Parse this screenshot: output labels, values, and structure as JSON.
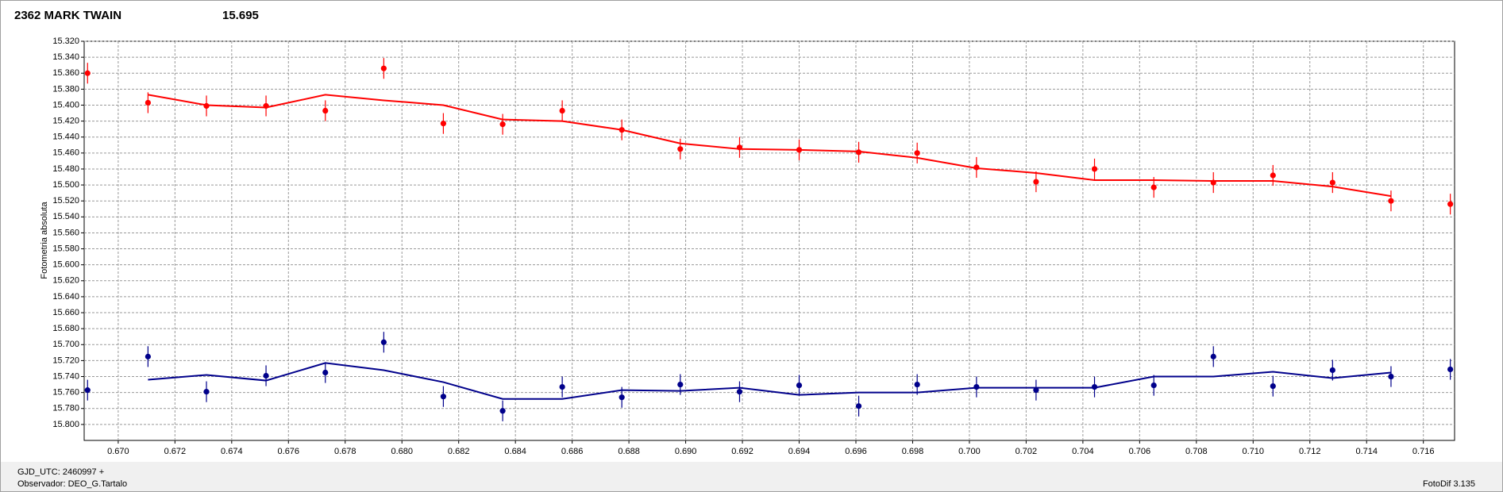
{
  "chart_data": {
    "type": "scatter",
    "title": "2362 MARK TWAIN",
    "title_color": "#ff0000",
    "subtitle": "15.695",
    "subtitle_color": "#00008b",
    "y_label": "Fotometria absoluta",
    "inverted_y": true,
    "grid": true,
    "x": [
      0.66892,
      0.67105,
      0.67311,
      0.67521,
      0.6773,
      0.67936,
      0.68146,
      0.68355,
      0.68565,
      0.68775,
      0.68981,
      0.6919,
      0.694,
      0.6961,
      0.69816,
      0.70025,
      0.70235,
      0.70441,
      0.7065,
      0.7086,
      0.7107,
      0.7128,
      0.71486,
      0.71695
    ],
    "series": [
      {
        "color": "#ff0000",
        "values": [
          15.36,
          15.397,
          15.401,
          15.401,
          15.407,
          15.354,
          15.423,
          15.424,
          15.407,
          15.431,
          15.455,
          15.453,
          15.456,
          15.459,
          15.46,
          15.478,
          15.496,
          15.48,
          15.503,
          15.497,
          15.488,
          15.497,
          15.52,
          15.524
        ],
        "errors": [
          0.013,
          0.013,
          0.013,
          0.013,
          0.013,
          0.013,
          0.013,
          0.013,
          0.013,
          0.013,
          0.013,
          0.013,
          0.013,
          0.013,
          0.013,
          0.013,
          0.013,
          0.013,
          0.013,
          0.013,
          0.013,
          0.013,
          0.013,
          0.013
        ],
        "fit": [
          null,
          15.387,
          15.4,
          15.403,
          15.387,
          15.394,
          15.4,
          15.418,
          15.42,
          15.431,
          15.448,
          15.455,
          15.456,
          15.458,
          15.466,
          15.479,
          15.485,
          15.494,
          15.494,
          15.495,
          15.495,
          15.502,
          15.514,
          null
        ]
      },
      {
        "color": "#00008b",
        "values": [
          15.757,
          15.715,
          15.759,
          15.739,
          15.735,
          15.697,
          15.765,
          15.783,
          15.753,
          15.766,
          15.75,
          15.759,
          15.751,
          15.777,
          15.75,
          15.753,
          15.757,
          15.753,
          15.751,
          15.715,
          15.752,
          15.732,
          15.74,
          15.731
        ],
        "errors": [
          0.013,
          0.013,
          0.013,
          0.013,
          0.013,
          0.013,
          0.013,
          0.013,
          0.013,
          0.013,
          0.013,
          0.013,
          0.013,
          0.013,
          0.013,
          0.013,
          0.013,
          0.013,
          0.013,
          0.013,
          0.013,
          0.013,
          0.013,
          0.013
        ],
        "fit": [
          null,
          15.744,
          15.738,
          15.745,
          15.723,
          15.732,
          15.747,
          15.768,
          15.768,
          15.757,
          15.758,
          15.754,
          15.763,
          15.76,
          15.76,
          15.754,
          15.754,
          15.754,
          15.74,
          15.74,
          15.734,
          15.742,
          15.735,
          null
        ]
      }
    ],
    "xlim": [
      0.6688,
      0.7171
    ],
    "xticks": [
      {
        "value": 0.67,
        "label": "0.670"
      },
      {
        "value": 0.672,
        "label": "0.672"
      },
      {
        "value": 0.674,
        "label": "0.674"
      },
      {
        "value": 0.676,
        "label": "0.676"
      },
      {
        "value": 0.678,
        "label": "0.678"
      },
      {
        "value": 0.68,
        "label": "0.680"
      },
      {
        "value": 0.682,
        "label": "0.682"
      },
      {
        "value": 0.684,
        "label": "0.684"
      },
      {
        "value": 0.686,
        "label": "0.686"
      },
      {
        "value": 0.688,
        "label": "0.688"
      },
      {
        "value": 0.69,
        "label": "0.690"
      },
      {
        "value": 0.692,
        "label": "0.692"
      },
      {
        "value": 0.694,
        "label": "0.694"
      },
      {
        "value": 0.696,
        "label": "0.696"
      },
      {
        "value": 0.698,
        "label": "0.698"
      },
      {
        "value": 0.7,
        "label": "0.700"
      },
      {
        "value": 0.702,
        "label": "0.702"
      },
      {
        "value": 0.704,
        "label": "0.704"
      },
      {
        "value": 0.706,
        "label": "0.706"
      },
      {
        "value": 0.708,
        "label": "0.708"
      },
      {
        "value": 0.71,
        "label": "0.710"
      },
      {
        "value": 0.712,
        "label": "0.712"
      },
      {
        "value": 0.714,
        "label": "0.714"
      },
      {
        "value": 0.716,
        "label": "0.716"
      }
    ],
    "ylim": [
      15.32,
      15.82
    ],
    "yticks": [
      {
        "value": 15.32,
        "label": "15.320"
      },
      {
        "value": 15.34,
        "label": "15.340"
      },
      {
        "value": 15.36,
        "label": "15.360"
      },
      {
        "value": 15.38,
        "label": "15.380"
      },
      {
        "value": 15.4,
        "label": "15.400"
      },
      {
        "value": 15.42,
        "label": "15.420"
      },
      {
        "value": 15.44,
        "label": "15.440"
      },
      {
        "value": 15.46,
        "label": "15.460"
      },
      {
        "value": 15.48,
        "label": "15.480"
      },
      {
        "value": 15.5,
        "label": "15.500"
      },
      {
        "value": 15.52,
        "label": "15.520"
      },
      {
        "value": 15.54,
        "label": "15.540"
      },
      {
        "value": 15.56,
        "label": "15.560"
      },
      {
        "value": 15.58,
        "label": "15.580"
      },
      {
        "value": 15.6,
        "label": "15.600"
      },
      {
        "value": 15.62,
        "label": "15.620"
      },
      {
        "value": 15.64,
        "label": "15.640"
      },
      {
        "value": 15.66,
        "label": "15.660"
      },
      {
        "value": 15.68,
        "label": "15.680"
      },
      {
        "value": 15.7,
        "label": "15.700"
      },
      {
        "value": 15.72,
        "label": "15.720"
      },
      {
        "value": 15.74,
        "label": "15.740"
      },
      {
        "value": 15.76,
        "label": "15.760"
      },
      {
        "value": 15.78,
        "label": "15.780"
      },
      {
        "value": 15.8,
        "label": "15.800"
      }
    ]
  },
  "footer": {
    "gjd": "GJD_UTC: 2460997 +",
    "observer": "Observador: DEO_G.Tartalo",
    "software": "FotoDif 3.135"
  }
}
